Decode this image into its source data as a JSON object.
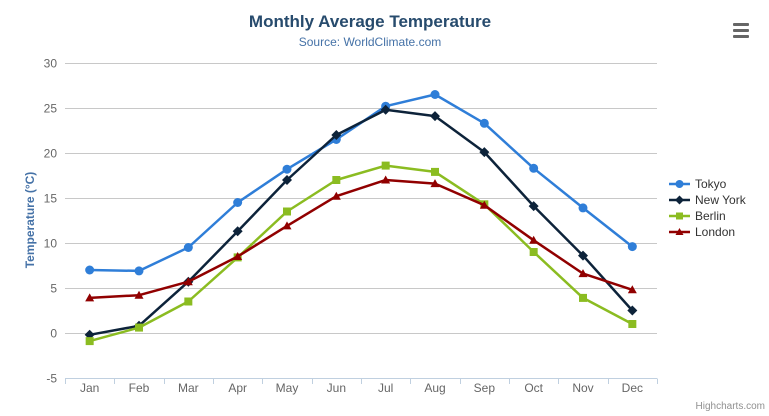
{
  "chart_data": {
    "type": "line",
    "title": "Monthly Average Temperature",
    "subtitle": "Source: WorldClimate.com",
    "categories": [
      "Jan",
      "Feb",
      "Mar",
      "Apr",
      "May",
      "Jun",
      "Jul",
      "Aug",
      "Sep",
      "Oct",
      "Nov",
      "Dec"
    ],
    "series": [
      {
        "name": "Tokyo",
        "color": "#2f7ed8",
        "marker": "circle",
        "values": [
          7.0,
          6.9,
          9.5,
          14.5,
          18.2,
          21.5,
          25.2,
          26.5,
          23.3,
          18.3,
          13.9,
          9.6
        ]
      },
      {
        "name": "New York",
        "color": "#0d233a",
        "marker": "diamond",
        "values": [
          -0.2,
          0.8,
          5.7,
          11.3,
          17.0,
          22.0,
          24.8,
          24.1,
          20.1,
          14.1,
          8.6,
          2.5
        ]
      },
      {
        "name": "Berlin",
        "color": "#8bbc21",
        "marker": "square",
        "values": [
          -0.9,
          0.6,
          3.5,
          8.4,
          13.5,
          17.0,
          18.6,
          17.9,
          14.3,
          9.0,
          3.9,
          1.0
        ]
      },
      {
        "name": "London",
        "color": "#910000",
        "marker": "triangle",
        "values": [
          3.9,
          4.2,
          5.7,
          8.5,
          11.9,
          15.2,
          17.0,
          16.6,
          14.2,
          10.3,
          6.6,
          4.8
        ]
      }
    ],
    "xlabel": "",
    "ylabel": "Temperature (°C)",
    "ylim": [
      -5,
      30
    ],
    "ytick_step": 5,
    "grid": true,
    "legend_position": "right"
  },
  "export_menu": {
    "icon": "hamburger-icon"
  },
  "credit": {
    "label": "Highcharts.com"
  },
  "colors": {
    "title": "#274b6d",
    "subtitle": "#4572a7",
    "axis_title": "#4572a7",
    "axis_label": "#666666",
    "gridline": "#c8c8c8",
    "axis_line": "#c0d0e0",
    "legend_text": "#333333",
    "credit": "#909090",
    "background": "#ffffff"
  }
}
